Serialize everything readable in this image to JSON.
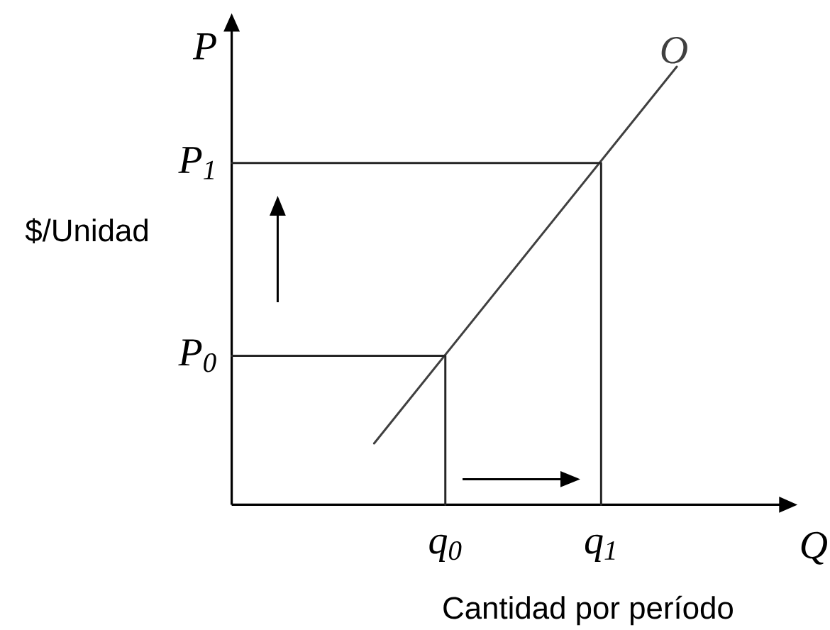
{
  "chart_data": {
    "type": "line",
    "xlabel": "Cantidad por período",
    "ylabel": "$/Unidad",
    "xlim": [
      0,
      1.23
    ],
    "ylim": [
      0,
      1.08
    ],
    "xticks": [
      {
        "value": 0.48,
        "label": "q$_{0}$"
      },
      {
        "value": 0.83,
        "label": "q$_{1}$"
      }
    ],
    "yticks": [
      {
        "value": 0.34,
        "label": "P$_{0}$"
      },
      {
        "value": 0.78,
        "label": "P$_{1}$"
      }
    ],
    "series": [
      {
        "name": "O",
        "color": "#404040",
        "x": [
          0.32,
          1
        ],
        "values": [
          0.14,
          1
        ]
      },
      {
        "color": "#262626",
        "x": [
          0,
          0.48,
          0.48
        ],
        "values": [
          0.34,
          0.34,
          0
        ]
      },
      {
        "color": "#262626",
        "x": [
          0,
          0.83,
          0.83
        ],
        "values": [
          0.78,
          0.78,
          0
        ]
      }
    ],
    "annotations": [
      "P",
      "Q"
    ]
  }
}
